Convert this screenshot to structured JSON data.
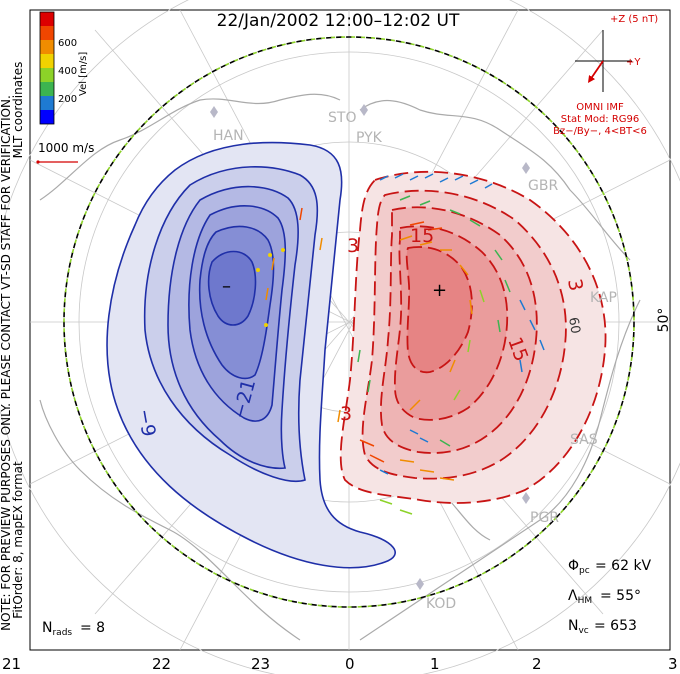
{
  "title": "22/Jan/2002 12:00–12:02 UT",
  "side_note": {
    "line1": "MLT coordinates",
    "line2": "NOTE: FOR PREVIEW PURPOSES ONLY. PLEASE CONTACT VT-SD STAFF FOR VERIFICATION.",
    "line3": "FitOrder: 8, mapEX format"
  },
  "colorbar": {
    "label": "Vel [m/s]",
    "ticks": [
      "600",
      "400",
      "200"
    ],
    "colors": [
      "#0000ff",
      "#1e7ad2",
      "#3cb450",
      "#8cd228",
      "#f0d200",
      "#f08c00",
      "#f04600",
      "#dc0000"
    ]
  },
  "scale_label": "1000 m/s",
  "latitude_label": "50°",
  "imf": {
    "z_label": "+Z (5 nT)",
    "y_label": "+Y",
    "source": "OMNI IMF",
    "model": "Stat Mod: RG96",
    "condition": "Bz−/By−, 4<BT<6"
  },
  "stations": [
    "HAN",
    "STO",
    "PYK",
    "GBR",
    "KAP",
    "SAS",
    "PGR",
    "KOD"
  ],
  "stats": {
    "phi_pc": "= 62 kV",
    "lambda_hm": "= 55°",
    "n_vc": "= 653",
    "n_rads": "= 8"
  },
  "mlt_axis": [
    "21",
    "22",
    "23",
    "0",
    "1",
    "2",
    "3"
  ],
  "contour_labels": {
    "neg_9": "−9",
    "neg_21": "−21",
    "pos_3_top": "3",
    "pos_3_mid": "3",
    "pos_3_right": "3",
    "pos_15_top": "15",
    "pos_15_right": "15",
    "min_marker": "–",
    "max_marker": "+",
    "lat_tick": "60"
  }
}
